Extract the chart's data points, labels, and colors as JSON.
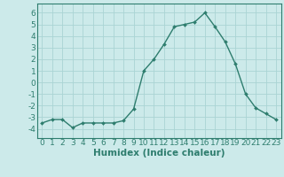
{
  "x": [
    0,
    1,
    2,
    3,
    4,
    5,
    6,
    7,
    8,
    9,
    10,
    11,
    12,
    13,
    14,
    15,
    16,
    17,
    18,
    19,
    20,
    21,
    22,
    23
  ],
  "y": [
    -3.5,
    -3.2,
    -3.2,
    -3.9,
    -3.5,
    -3.5,
    -3.5,
    -3.5,
    -3.3,
    -2.3,
    1.0,
    2.0,
    3.3,
    4.8,
    5.0,
    5.2,
    6.0,
    4.8,
    3.5,
    1.6,
    -1.0,
    -2.2,
    -2.7,
    -3.2
  ],
  "line_color": "#2e7d6e",
  "marker": "D",
  "marker_size": 2.0,
  "bg_color": "#cceaea",
  "grid_color": "#aad4d4",
  "xlabel": "Humidex (Indice chaleur)",
  "ylim": [
    -4.8,
    6.8
  ],
  "xlim": [
    -0.5,
    23.5
  ],
  "yticks": [
    -4,
    -3,
    -2,
    -1,
    0,
    1,
    2,
    3,
    4,
    5,
    6
  ],
  "xticks": [
    0,
    1,
    2,
    3,
    4,
    5,
    6,
    7,
    8,
    9,
    10,
    11,
    12,
    13,
    14,
    15,
    16,
    17,
    18,
    19,
    20,
    21,
    22,
    23
  ],
  "xlabel_fontsize": 7.5,
  "tick_fontsize": 6.5,
  "line_width": 1.0
}
